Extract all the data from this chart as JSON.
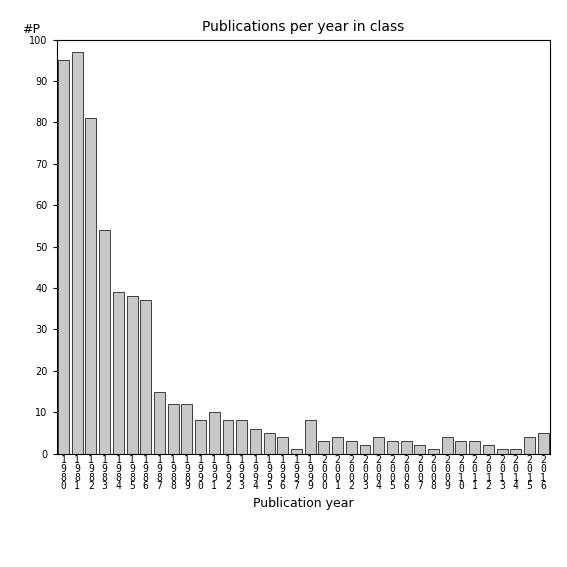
{
  "title": "Publications per year in class",
  "xlabel": "Publication year",
  "ylabel": "#P",
  "bar_color": "#c8c8c8",
  "bar_edge_color": "#000000",
  "background_color": "#ffffff",
  "ylim": [
    0,
    100
  ],
  "yticks": [
    0,
    10,
    20,
    30,
    40,
    50,
    60,
    70,
    80,
    90,
    100
  ],
  "years": [
    1980,
    1981,
    1982,
    1983,
    1984,
    1985,
    1986,
    1987,
    1988,
    1989,
    1990,
    1991,
    1992,
    1993,
    1994,
    1995,
    1996,
    1997,
    1999,
    2000,
    2001,
    2002,
    2003,
    2004,
    2005,
    2006,
    2007,
    2008,
    2009,
    2010,
    2011,
    2012,
    2013,
    2014,
    2015,
    2016
  ],
  "values": [
    95,
    97,
    81,
    54,
    39,
    38,
    37,
    15,
    12,
    12,
    8,
    10,
    8,
    8,
    6,
    5,
    4,
    1,
    8,
    3,
    4,
    3,
    2,
    4,
    3,
    3,
    2,
    1,
    4,
    3,
    3,
    2,
    1,
    1,
    4,
    5
  ],
  "title_fontsize": 10,
  "axis_fontsize": 9,
  "tick_fontsize": 7
}
